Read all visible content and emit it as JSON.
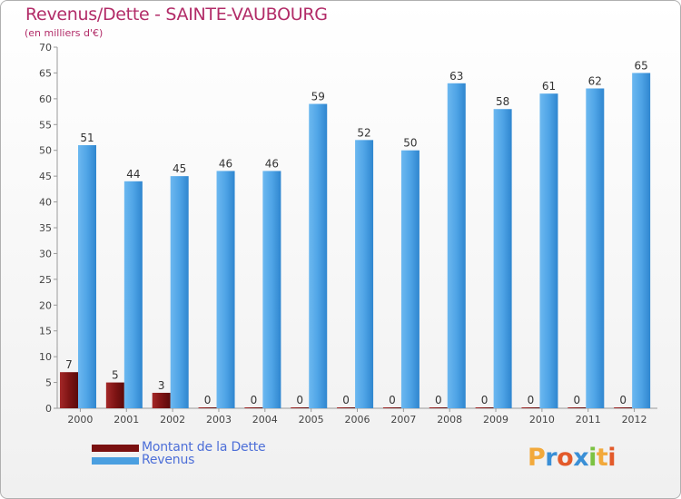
{
  "chart_data": {
    "type": "bar",
    "title": "Revenus/Dette - SAINTE-VAUBOURG",
    "subtitle": "(en milliers d'€)",
    "categories": [
      "2000",
      "2001",
      "2002",
      "2003",
      "2004",
      "2005",
      "2006",
      "2007",
      "2008",
      "2009",
      "2010",
      "2011",
      "2012"
    ],
    "series": [
      {
        "name": "Montant de la Dette",
        "color": "#7a1010",
        "values": [
          7,
          5,
          3,
          0,
          0,
          0,
          0,
          0,
          0,
          0,
          0,
          0,
          0
        ]
      },
      {
        "name": "Revenus",
        "color": "#4a9fe0",
        "values": [
          51,
          44,
          45,
          46,
          46,
          59,
          52,
          50,
          63,
          58,
          61,
          62,
          65
        ]
      }
    ],
    "ylim": [
      0,
      70
    ],
    "yticks": [
      0,
      5,
      10,
      15,
      20,
      25,
      30,
      35,
      40,
      45,
      50,
      55,
      60,
      65,
      70
    ],
    "grid": false,
    "legend_position": "bottom-left"
  },
  "logo": {
    "letters": [
      "P",
      "r",
      "o",
      "x",
      "i",
      "t",
      "i"
    ],
    "colors": [
      "#f2a93b",
      "#3a8fd6",
      "#e35a2a",
      "#3a8fd6",
      "#7cc242",
      "#f2a93b",
      "#e35a2a"
    ]
  }
}
